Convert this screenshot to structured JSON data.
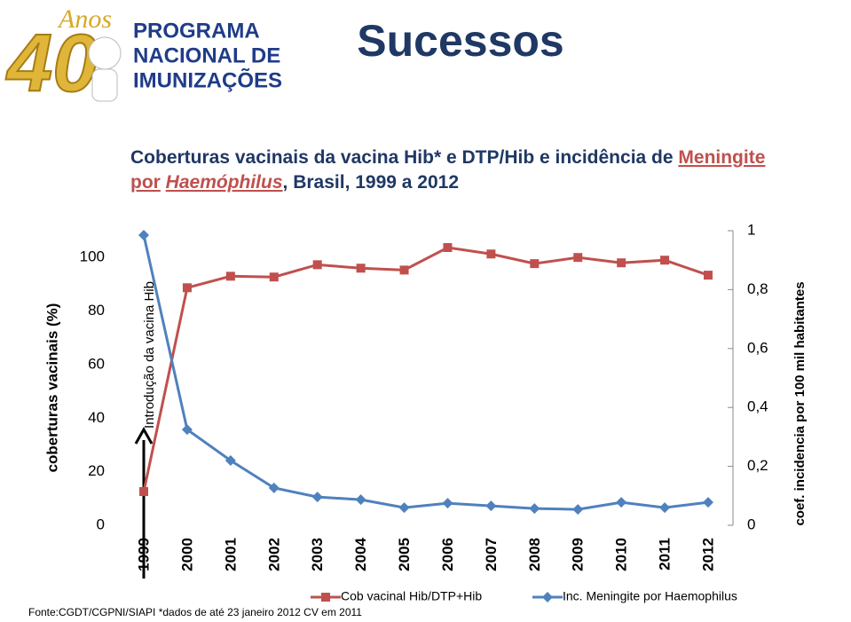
{
  "slide": {
    "title": "Sucessos",
    "logo": {
      "years_word": "Anos",
      "years": "40",
      "line1": "PROGRAMA",
      "line2": "NACIONAL DE",
      "line3": "IMUNIZAÇÕES"
    },
    "source": "Fonte:CGDT/CGPNI/SIAPI *dados de até 23 janeiro 2012 CV em 2011"
  },
  "chart_data": {
    "type": "line",
    "title_parts": [
      "Coberturas vacinais da vacina Hib* e  DTP/Hib e incidência  de",
      "Meningite",
      "por",
      "Haemóphilus",
      ", Brasil, 1999 a 2012"
    ],
    "annotation": "Introdução da vacina Hib",
    "y_label": "coberturas vacinais (%)",
    "y2_label": "coef. incidencia por 100 mil habitantes",
    "categories": [
      "1999",
      "2000",
      "2001",
      "2002",
      "2003",
      "2004",
      "2005",
      "2006",
      "2007",
      "2008",
      "2009",
      "2010",
      "2011",
      "2012"
    ],
    "ylim": [
      0,
      110
    ],
    "yticks": [
      0,
      20,
      40,
      60,
      80,
      100
    ],
    "y2lim": [
      0,
      1
    ],
    "y2ticks": [
      0,
      {
        "value": 0.2,
        "label": "0,2"
      },
      {
        "value": 0.4,
        "label": "0,4"
      },
      {
        "value": 0.6,
        "label": "0,6"
      },
      {
        "value": 0.8,
        "label": "0,8"
      },
      1
    ],
    "series": [
      {
        "name": "Cob vacinal Hib/DTP+Hib",
        "color": "#c0504d",
        "marker": "square",
        "values": [
          12.6,
          88.7,
          93,
          92.7,
          97.3,
          96,
          95.3,
          103.7,
          101.3,
          97.7,
          100,
          98,
          99,
          93.4
        ]
      },
      {
        "name": "Inc. Meningite por Haemophilus",
        "color": "#4f81bd",
        "marker": "diamond",
        "axis": "y2",
        "values": [
          0.985,
          0.325,
          0.22,
          0.127,
          0.096,
          0.087,
          0.06,
          0.075,
          0.066,
          0.057,
          0.054,
          0.078,
          0.06,
          0.078
        ]
      }
    ]
  }
}
